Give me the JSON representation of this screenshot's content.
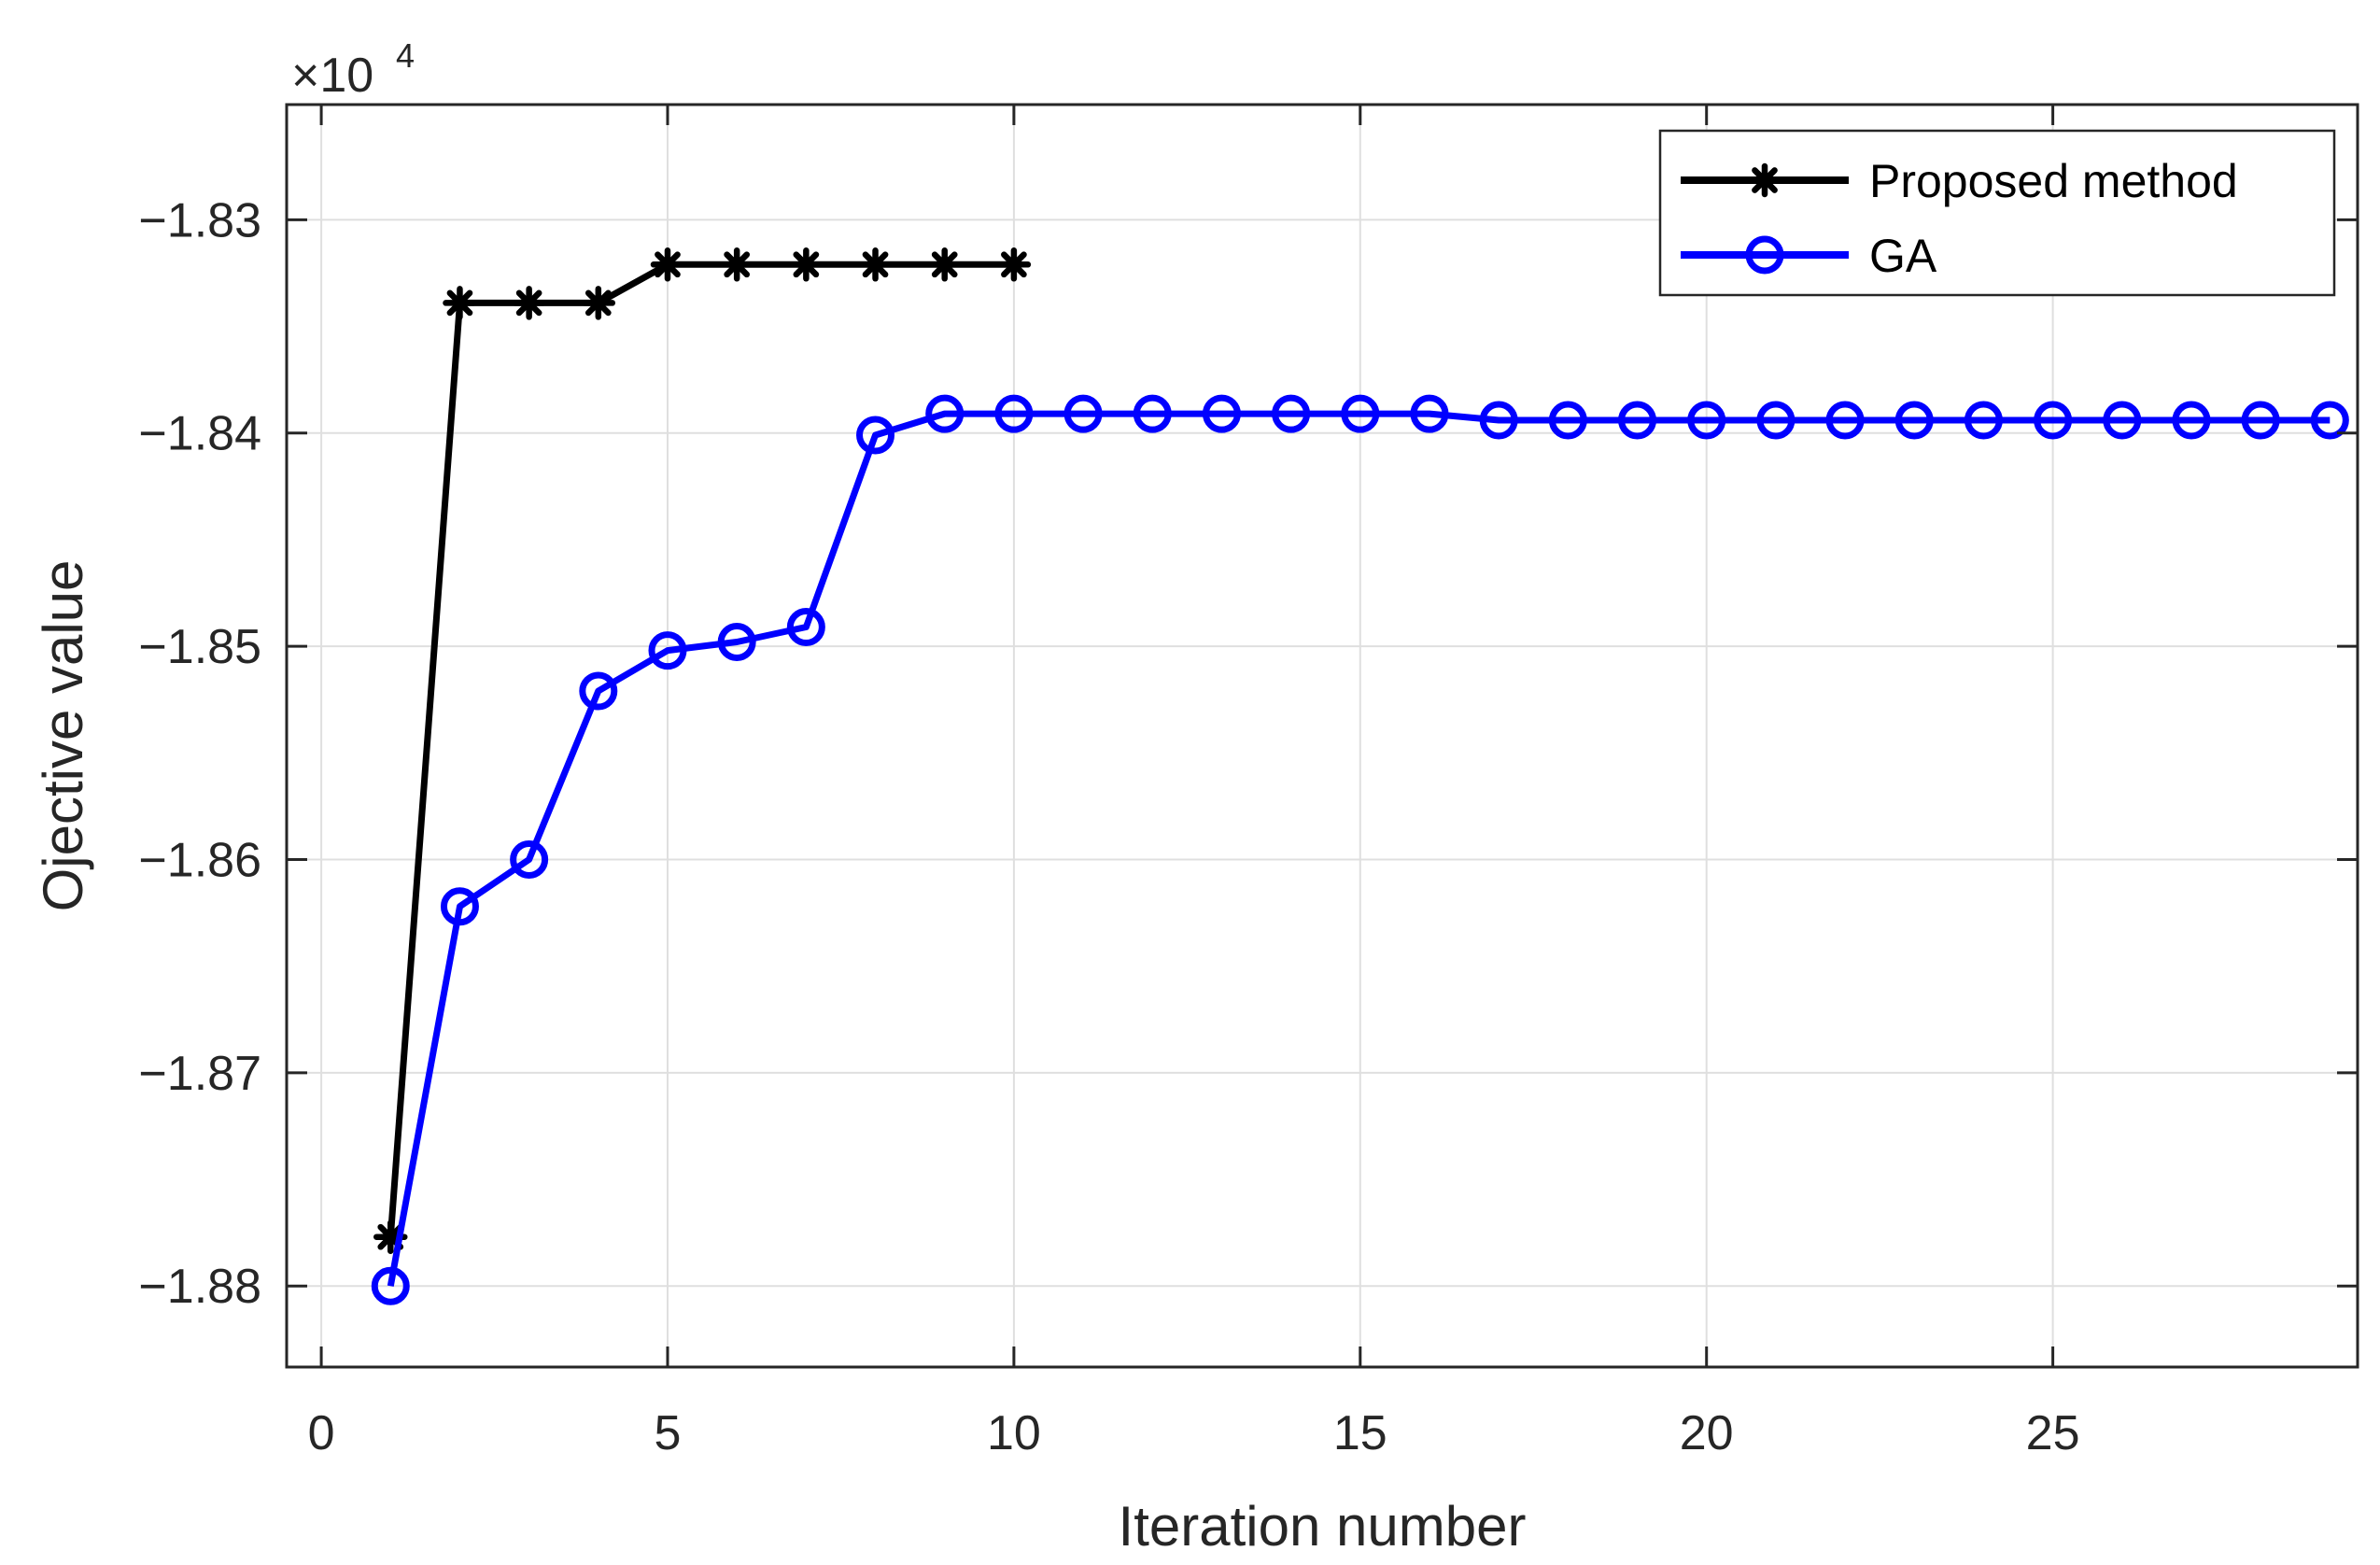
{
  "chart_data": {
    "type": "line",
    "title": "",
    "xlabel": "Iteration number",
    "ylabel": "Ojective value",
    "y_multiplier": {
      "base": "×10",
      "exponent": "4"
    },
    "xlim": [
      -0.5,
      29.4
    ],
    "ylim": [
      -1.8838,
      -1.8246
    ],
    "x_ticks": [
      0,
      5,
      10,
      15,
      20,
      25
    ],
    "x_tick_labels": [
      "0",
      "5",
      "10",
      "15",
      "20",
      "25"
    ],
    "y_ticks": [
      -1.88,
      -1.87,
      -1.86,
      -1.85,
      -1.84,
      -1.83
    ],
    "y_tick_labels": [
      "−1.88",
      "−1.87",
      "−1.86",
      "−1.85",
      "−1.84",
      "−1.83"
    ],
    "grid": true,
    "legend_position": "top-right",
    "series": [
      {
        "name": "Proposed method",
        "color": "#000000",
        "marker": "asterisk",
        "x": [
          1,
          2,
          3,
          4,
          5,
          6,
          7,
          8,
          9,
          10
        ],
        "y": [
          -1.8777,
          -1.8339,
          -1.8339,
          -1.8339,
          -1.8321,
          -1.8321,
          -1.8321,
          -1.8321,
          -1.8321,
          -1.8321
        ]
      },
      {
        "name": "GA",
        "color": "#0000ff",
        "marker": "circle",
        "x": [
          1,
          2,
          3,
          4,
          5,
          6,
          7,
          8,
          9,
          10,
          11,
          12,
          13,
          14,
          15,
          16,
          17,
          18,
          19,
          20,
          21,
          22,
          23,
          24,
          25,
          26,
          27,
          28,
          29
        ],
        "y": [
          -1.88,
          -1.8622,
          -1.86,
          -1.8521,
          -1.8502,
          -1.8498,
          -1.8491,
          -1.8401,
          -1.8391,
          -1.8391,
          -1.8391,
          -1.8391,
          -1.8391,
          -1.8391,
          -1.8391,
          -1.8391,
          -1.8394,
          -1.8394,
          -1.8394,
          -1.8394,
          -1.8394,
          -1.8394,
          -1.8394,
          -1.8394,
          -1.8394,
          -1.8394,
          -1.8394,
          -1.8394,
          -1.8394
        ]
      }
    ]
  }
}
